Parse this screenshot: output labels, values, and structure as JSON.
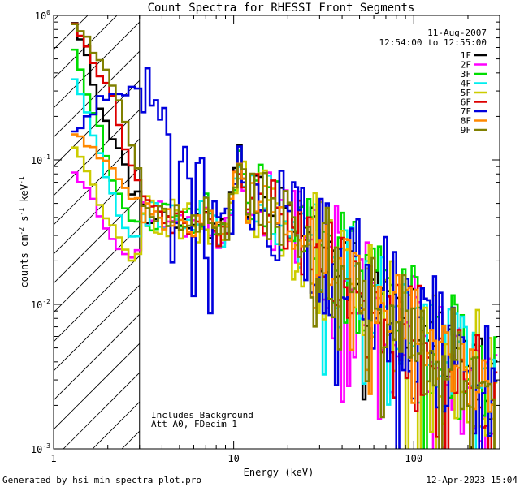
{
  "chart_data": {
    "type": "line",
    "title": "Count Spectra for RHESSI Front Segments",
    "xlabel": "Energy (keV)",
    "ylabel_parts": [
      "counts cm",
      "-2",
      " s",
      "-1",
      " keV",
      "-1"
    ],
    "xscale": "log",
    "yscale": "log",
    "xlim": [
      1.0,
      300.0
    ],
    "ylim": [
      0.001,
      1.0
    ],
    "x_ticks": [
      {
        "value": 1,
        "label": "1"
      },
      {
        "value": 10,
        "label": "10"
      },
      {
        "value": 100,
        "label": "100"
      }
    ],
    "y_ticks": [
      {
        "value": 1,
        "label": "10",
        "exp": "0"
      },
      {
        "value": 0.1,
        "label": "10",
        "exp": "-1"
      },
      {
        "value": 0.01,
        "label": "10",
        "exp": "-2"
      },
      {
        "value": 0.001,
        "label": "10",
        "exp": "-3"
      }
    ],
    "shaded_region_xmax_keV": 3.0,
    "date": "11-Aug-2007",
    "time_range": "12:54:00 to 12:55:00",
    "annotations": [
      "Includes Background",
      "Att A0, FDecim 1"
    ],
    "legend_position": "top-right",
    "series": [
      {
        "name": "1F",
        "color": "#000000",
        "seed": 11,
        "low": [
          0.85,
          0.55,
          0.25,
          0.15,
          0.1,
          0.05,
          0.07
        ],
        "noise": 0.1,
        "tailnoise": 0.22
      },
      {
        "name": "2F",
        "color": "#ff00ff",
        "seed": 23,
        "low": [
          0.08,
          0.065,
          0.045,
          0.03,
          0.022,
          0.02,
          0.03
        ],
        "noise": 0.11,
        "tailnoise": 0.3
      },
      {
        "name": "3F",
        "color": "#00dd00",
        "seed": 37,
        "low": [
          0.55,
          0.3,
          0.18,
          0.08,
          0.05,
          0.035,
          0.04
        ],
        "noise": 0.12,
        "tailnoise": 0.32
      },
      {
        "name": "4F",
        "color": "#00eeee",
        "seed": 41,
        "low": [
          0.35,
          0.22,
          0.12,
          0.06,
          0.035,
          0.028,
          0.035
        ],
        "noise": 0.1,
        "tailnoise": 0.25
      },
      {
        "name": "5F",
        "color": "#cccc00",
        "seed": 53,
        "low": [
          0.12,
          0.09,
          0.05,
          0.035,
          0.025,
          0.02,
          0.025
        ],
        "noise": 0.14,
        "tailnoise": 0.35
      },
      {
        "name": "6F",
        "color": "#dd0000",
        "seed": 67,
        "low": [
          0.85,
          0.65,
          0.4,
          0.3,
          0.12,
          0.08,
          0.06
        ],
        "noise": 0.1,
        "tailnoise": 0.25
      },
      {
        "name": "7F",
        "color": "#0000dd",
        "seed": 71,
        "low": [
          0.15,
          0.2,
          0.25,
          0.28,
          0.3,
          0.32,
          0.35
        ],
        "noise": 0.22,
        "tailnoise": 0.35
      },
      {
        "name": "8F",
        "color": "#ff8800",
        "seed": 83,
        "low": [
          0.15,
          0.13,
          0.11,
          0.09,
          0.07,
          0.05,
          0.06
        ],
        "noise": 0.1,
        "tailnoise": 0.2
      },
      {
        "name": "9F",
        "color": "#808000",
        "seed": 97,
        "low": [
          0.85,
          0.7,
          0.5,
          0.35,
          0.2,
          0.1,
          0.07
        ],
        "noise": 0.1,
        "tailnoise": 0.25
      }
    ]
  },
  "footer": {
    "generated_by": "Generated by hsi_min_spectra_plot.pro",
    "timestamp": "12-Apr-2023 15:04"
  }
}
